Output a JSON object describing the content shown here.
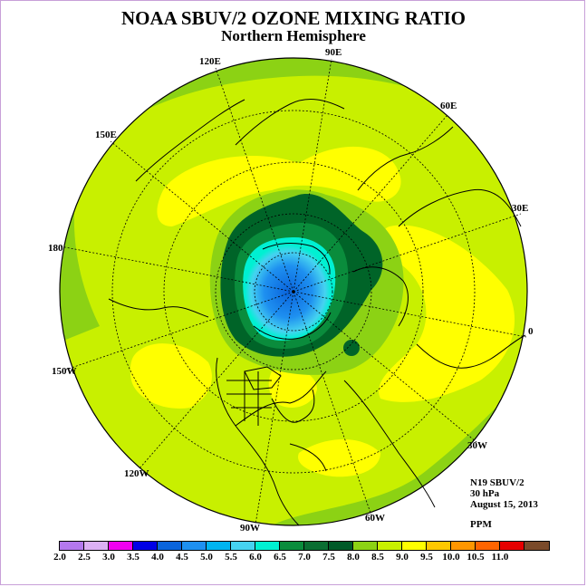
{
  "title": "NOAA SBUV/2 OZONE MIXING RATIO",
  "subtitle": "Northern Hemisphere",
  "longitude_labels": [
    "90E",
    "60E",
    "30E",
    "0",
    "30W",
    "60W",
    "90W",
    "120W",
    "150W",
    "180",
    "150E",
    "120E"
  ],
  "info": {
    "instrument": "N19 SBUV/2",
    "level": "30 hPa",
    "date": "August 15, 2013",
    "units": "PPM"
  },
  "colorbar": {
    "ticks": [
      "2.0",
      "2.5",
      "3.0",
      "3.5",
      "4.0",
      "4.5",
      "5.0",
      "5.5",
      "6.0",
      "6.5",
      "7.0",
      "7.5",
      "8.0",
      "8.5",
      "9.0",
      "9.5",
      "10.0",
      "10.5",
      "11.0"
    ],
    "colors": [
      "#b478ee",
      "#dcb0f4",
      "#f000f0",
      "#0000e6",
      "#0a64dc",
      "#1e90f0",
      "#00b4f0",
      "#46d2f0",
      "#00f0d2",
      "#0a8c3c",
      "#0a6e32",
      "#005a28",
      "#8cd214",
      "#c8f000",
      "#ffff00",
      "#ffc800",
      "#ff9600",
      "#ff6400",
      "#e60000",
      "#7a4a2a"
    ]
  },
  "map_colors": {
    "background": "#c8f000",
    "yellow": "#ffff00",
    "light_green": "#8cd214",
    "dark_green": "#006428",
    "mid_green": "#0a8c3c",
    "cyan": "#00f0d2",
    "light_blue": "#46d2f0",
    "blue": "#1e90f0",
    "deep_blue": "#0a64dc",
    "coast": "#000000"
  }
}
